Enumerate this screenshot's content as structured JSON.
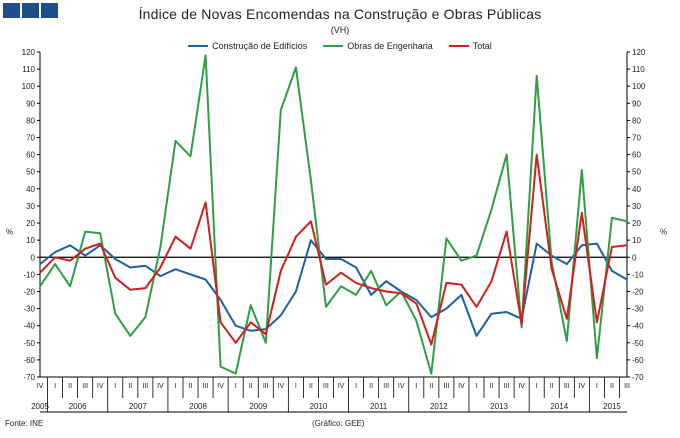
{
  "header": {
    "logo_name": "gee-logo",
    "title": "Índice de Novas Encomendas na Construção e Obras Públicas",
    "subtitle": "(VH)"
  },
  "footer": {
    "source": "Fonte: INE",
    "credit": "(Gráfico: GEE)"
  },
  "chart_data": {
    "type": "line",
    "title": "Índice de Novas Encomendas na Construção e Obras Públicas",
    "subtitle": "(VH)",
    "ylabel_left": "%",
    "ylabel_right": "%",
    "ylim": [
      -70,
      120
    ],
    "yticks": [
      120,
      110,
      100,
      90,
      80,
      70,
      60,
      50,
      40,
      30,
      20,
      10,
      0,
      -10,
      -20,
      -30,
      -40,
      -50,
      -60,
      -70
    ],
    "grid": false,
    "legend_position": "top",
    "quarter_labels": [
      "IV",
      "I",
      "II",
      "III",
      "IV",
      "I",
      "II",
      "III",
      "IV",
      "I",
      "II",
      "III",
      "IV",
      "I",
      "II",
      "III",
      "IV",
      "I",
      "II",
      "III",
      "IV",
      "I",
      "II",
      "III",
      "IV",
      "I",
      "II",
      "III",
      "IV",
      "I",
      "II",
      "III",
      "IV",
      "I",
      "II",
      "III",
      "IV",
      "I",
      "II",
      "III"
    ],
    "year_labels": [
      {
        "label": "2005",
        "from": 0,
        "to": 0
      },
      {
        "label": "2006",
        "from": 1,
        "to": 4
      },
      {
        "label": "2007",
        "from": 5,
        "to": 8
      },
      {
        "label": "2008",
        "from": 9,
        "to": 12
      },
      {
        "label": "2009",
        "from": 13,
        "to": 16
      },
      {
        "label": "2010",
        "from": 17,
        "to": 20
      },
      {
        "label": "2011",
        "from": 21,
        "to": 24
      },
      {
        "label": "2012",
        "from": 25,
        "to": 28
      },
      {
        "label": "2013",
        "from": 29,
        "to": 32
      },
      {
        "label": "2014",
        "from": 33,
        "to": 36
      },
      {
        "label": "2015",
        "from": 37,
        "to": 39
      }
    ],
    "series": [
      {
        "name": "Construção de Edifícios",
        "color": "#1f5fa5",
        "values": [
          -4,
          3,
          7,
          1,
          7,
          -1,
          -6,
          -5,
          -11,
          -7,
          -10,
          -13,
          -25,
          -40,
          -43,
          -42,
          -34,
          -20,
          10,
          -1,
          -1,
          -6,
          -22,
          -14,
          -20,
          -25,
          -35,
          -30,
          -22,
          -46,
          -33,
          -32,
          -36,
          8,
          1,
          -4,
          7,
          8,
          -8,
          -13
        ]
      },
      {
        "name": "Obras de Engenharia",
        "color": "#2f9e44",
        "values": [
          -17,
          -4,
          -17,
          15,
          14,
          -33,
          -46,
          -35,
          6,
          68,
          59,
          118,
          -64,
          -68,
          -28,
          -50,
          86,
          111,
          45,
          -29,
          -17,
          -22,
          -8,
          -28,
          -20,
          -37,
          -68,
          11,
          -2,
          1,
          28,
          60,
          -41,
          106,
          -3,
          -49,
          51,
          -59,
          23,
          21
        ]
      },
      {
        "name": "Total",
        "color": "#d0201d",
        "values": [
          -9,
          0,
          -2,
          5,
          8,
          -12,
          -19,
          -18,
          -6,
          12,
          5,
          32,
          -38,
          -50,
          -38,
          -45,
          -8,
          12,
          21,
          -16,
          -9,
          -15,
          -18,
          -20,
          -21,
          -27,
          -51,
          -15,
          -16,
          -29,
          -14,
          15,
          -39,
          60,
          -7,
          -36,
          26,
          -38,
          6,
          7
        ]
      }
    ]
  }
}
